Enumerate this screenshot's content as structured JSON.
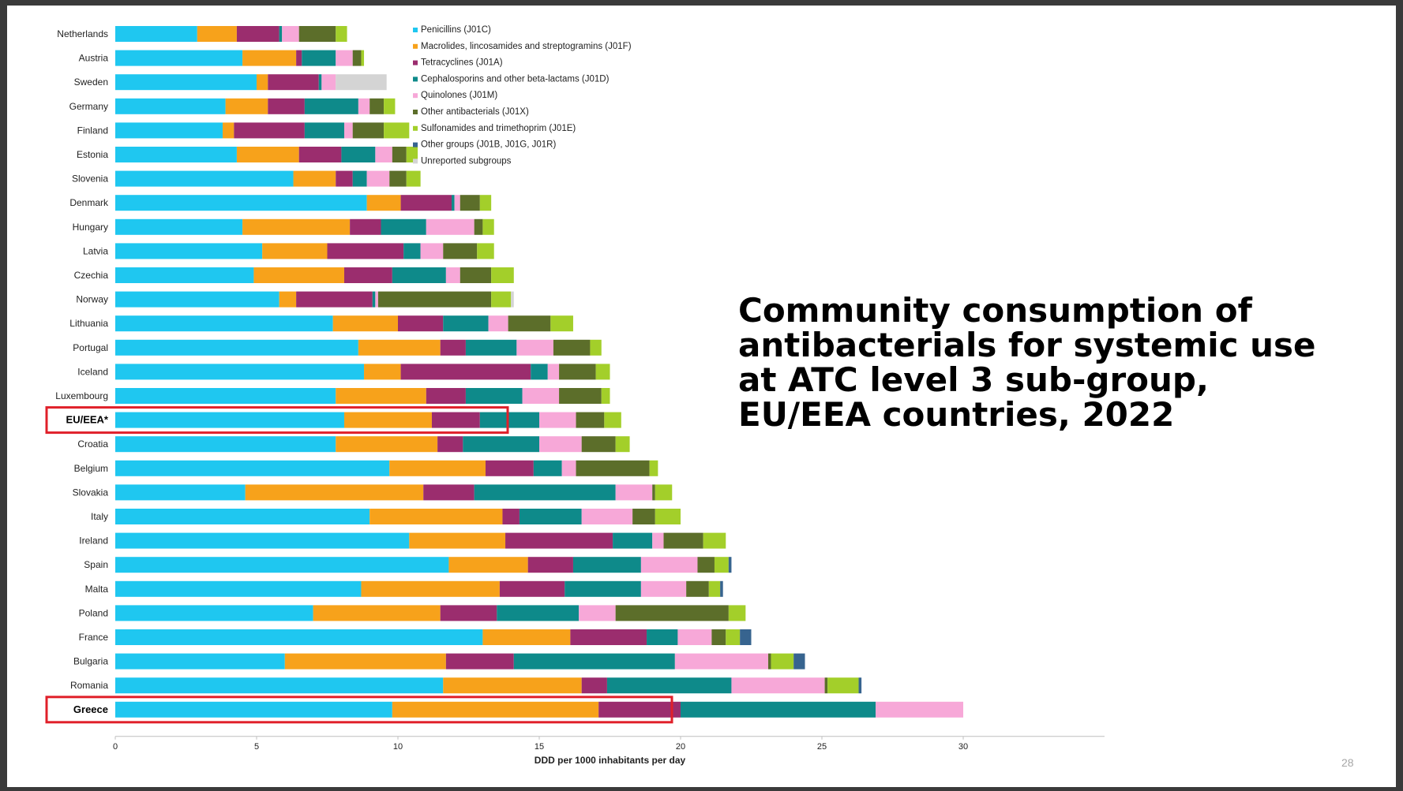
{
  "slide": {
    "title": "Community consumption of antibacterials for systemic use at ATC level 3 sub-group, EU/EEA countries, 2022",
    "page_number": "28"
  },
  "highlight_color": "#e0202a",
  "highlighted_categories": [
    "EU/EEA*",
    "Greece"
  ],
  "chart_data": {
    "type": "bar",
    "orientation": "horizontal",
    "stacked": true,
    "title": "",
    "xlabel": "DDD per 1000 inhabitants per day",
    "ylabel": "",
    "xlim": [
      0,
      35
    ],
    "xticks": [
      0,
      5,
      10,
      15,
      20,
      25,
      30
    ],
    "legend_position": "top-right",
    "grid": false,
    "categories": [
      "Netherlands",
      "Austria",
      "Sweden",
      "Germany",
      "Finland",
      "Estonia",
      "Slovenia",
      "Denmark",
      "Hungary",
      "Latvia",
      "Czechia",
      "Norway",
      "Lithuania",
      "Portugal",
      "Iceland",
      "Luxembourg",
      "EU/EEA*",
      "Croatia",
      "Belgium",
      "Slovakia",
      "Italy",
      "Ireland",
      "Spain",
      "Malta",
      "Poland",
      "France",
      "Bulgaria",
      "Romania",
      "Greece"
    ],
    "series": [
      {
        "name": "Penicillins (J01C)",
        "color": "#1fc7f0",
        "values": [
          2.9,
          4.5,
          5.0,
          3.9,
          3.8,
          4.3,
          6.3,
          8.9,
          4.5,
          5.2,
          4.9,
          5.8,
          7.7,
          8.6,
          8.8,
          7.8,
          8.1,
          7.8,
          9.7,
          4.6,
          9.0,
          10.4,
          11.8,
          8.7,
          7.0,
          13.0,
          6.0,
          11.6,
          9.8
        ]
      },
      {
        "name": "Macrolides, lincosamides and streptogramins (J01F)",
        "color": "#f7a21b",
        "values": [
          1.4,
          1.9,
          0.4,
          1.5,
          0.4,
          2.2,
          1.5,
          1.2,
          3.8,
          2.3,
          3.2,
          0.6,
          2.3,
          2.9,
          1.3,
          3.2,
          3.1,
          3.6,
          3.4,
          6.3,
          4.7,
          3.4,
          2.8,
          4.9,
          4.5,
          3.1,
          5.7,
          4.9,
          7.3
        ]
      },
      {
        "name": "Tetracyclines (J01A)",
        "color": "#9b2d6e",
        "values": [
          1.5,
          0.2,
          1.8,
          1.3,
          2.5,
          1.5,
          0.6,
          1.8,
          1.1,
          2.7,
          1.7,
          2.7,
          1.6,
          0.9,
          4.6,
          1.4,
          1.7,
          0.9,
          1.7,
          1.8,
          0.6,
          3.8,
          1.6,
          2.3,
          2.0,
          2.7,
          2.4,
          0.9,
          2.9
        ]
      },
      {
        "name": "Cephalosporins and other beta-lactams (J01D)",
        "color": "#0e8a8a",
        "values": [
          0.1,
          1.2,
          0.1,
          1.9,
          1.4,
          1.2,
          0.5,
          0.1,
          1.6,
          0.6,
          1.9,
          0.1,
          1.6,
          1.8,
          0.6,
          2.0,
          2.1,
          2.7,
          1.0,
          5.0,
          2.2,
          1.4,
          2.4,
          2.7,
          2.9,
          1.1,
          5.7,
          4.4,
          6.9
        ]
      },
      {
        "name": "Quinolones (J01M)",
        "color": "#f7a8d8",
        "values": [
          0.6,
          0.6,
          0.5,
          0.4,
          0.3,
          0.6,
          0.8,
          0.2,
          1.7,
          0.8,
          0.5,
          0.1,
          0.7,
          1.3,
          0.4,
          1.3,
          1.3,
          1.5,
          0.5,
          1.3,
          1.8,
          0.4,
          2.0,
          1.6,
          1.3,
          1.2,
          3.3,
          3.3,
          3.1
        ]
      },
      {
        "name": "Other antibacterials (J01X)",
        "color": "#5c6e2a",
        "values": [
          1.3,
          0.3,
          0.0,
          0.5,
          1.1,
          0.5,
          0.6,
          0.7,
          0.3,
          1.2,
          1.1,
          4.0,
          1.5,
          1.3,
          1.3,
          1.5,
          1.0,
          1.2,
          2.6,
          0.1,
          0.8,
          1.4,
          0.6,
          0.8,
          4.0,
          0.5,
          0.1,
          0.1,
          0.0
        ]
      },
      {
        "name": "Sulfonamides and trimethoprim (J01E)",
        "color": "#a3cf2a",
        "values": [
          0.4,
          0.1,
          0.0,
          0.4,
          0.9,
          0.4,
          0.5,
          0.4,
          0.4,
          0.6,
          0.8,
          0.7,
          0.8,
          0.4,
          0.5,
          0.3,
          0.6,
          0.5,
          0.3,
          0.6,
          0.9,
          0.8,
          0.5,
          0.4,
          0.6,
          0.5,
          0.8,
          1.1,
          0.0
        ]
      },
      {
        "name": "Other groups (J01B, J01G, J01R)",
        "color": "#37648f",
        "values": [
          0.0,
          0.0,
          0.0,
          0.0,
          0.0,
          0.0,
          0.0,
          0.0,
          0.0,
          0.0,
          0.0,
          0.0,
          0.0,
          0.0,
          0.0,
          0.0,
          0.0,
          0.0,
          0.0,
          0.0,
          0.0,
          0.0,
          0.1,
          0.1,
          0.0,
          0.4,
          0.4,
          0.1,
          0.0
        ]
      },
      {
        "name": "Unreported subgroups",
        "color": "#d4d4d4",
        "values": [
          0.0,
          0.0,
          1.8,
          0.0,
          0.0,
          0.0,
          0.0,
          0.0,
          0.0,
          0.0,
          0.0,
          0.1,
          0.0,
          0.0,
          0.0,
          0.0,
          0.0,
          0.0,
          0.0,
          0.0,
          0.0,
          0.0,
          0.0,
          0.0,
          0.0,
          0.0,
          0.0,
          0.0,
          0.0
        ]
      }
    ]
  }
}
